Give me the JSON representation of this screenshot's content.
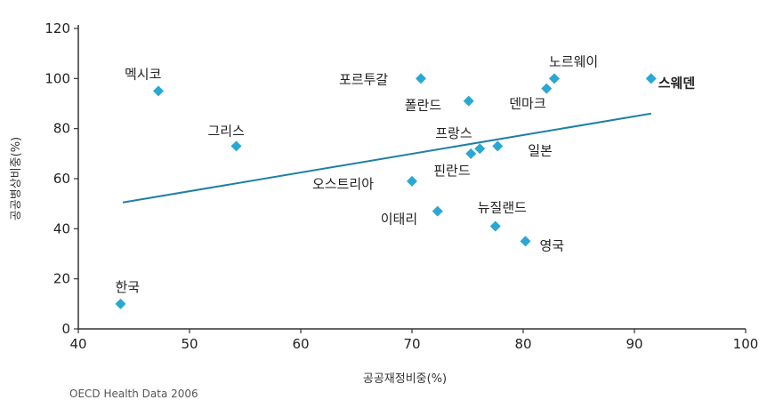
{
  "chart_data": {
    "type": "scatter",
    "title": "",
    "xlabel": "공공재정비중(%)",
    "ylabel": "공공병상비중(%)",
    "xlim": [
      40,
      100
    ],
    "ylim": [
      0,
      120
    ],
    "xticks": [
      "40",
      "50",
      "60",
      "70",
      "80",
      "90",
      "100"
    ],
    "yticks": [
      "0",
      "20",
      "40",
      "60",
      "80",
      "100",
      "120"
    ],
    "grid": false,
    "point_color": "#2aa8d4",
    "trend_color": "#1e7fa6",
    "points": [
      {
        "label": "멕시코",
        "x": 47.2,
        "y": 95
      },
      {
        "label": "그리스",
        "x": 54.2,
        "y": 73
      },
      {
        "label": "한국",
        "x": 43.8,
        "y": 10
      },
      {
        "label": "포르투갈",
        "x": 70.8,
        "y": 100
      },
      {
        "label": "폴란드",
        "x": 75.1,
        "y": 91
      },
      {
        "label": "노르웨이",
        "x": 82.8,
        "y": 100
      },
      {
        "label": "덴마크",
        "x": 82.1,
        "y": 96
      },
      {
        "label": "스웨덴",
        "x": 91.5,
        "y": 100
      },
      {
        "label": "프랑스",
        "x": 76.1,
        "y": 72
      },
      {
        "label": "일본",
        "x": 77.7,
        "y": 73
      },
      {
        "label": "핀란드",
        "x": 75.3,
        "y": 70
      },
      {
        "label": "오스트리아",
        "x": 70.0,
        "y": 59
      },
      {
        "label": "이태리",
        "x": 72.3,
        "y": 47
      },
      {
        "label": "뉴질랜드",
        "x": 77.5,
        "y": 41
      },
      {
        "label": "영국",
        "x": 80.2,
        "y": 35
      }
    ],
    "trendline": {
      "x": [
        44,
        91.5
      ],
      "y": [
        50.5,
        86
      ]
    }
  },
  "source": "OECD Health Data 2006"
}
